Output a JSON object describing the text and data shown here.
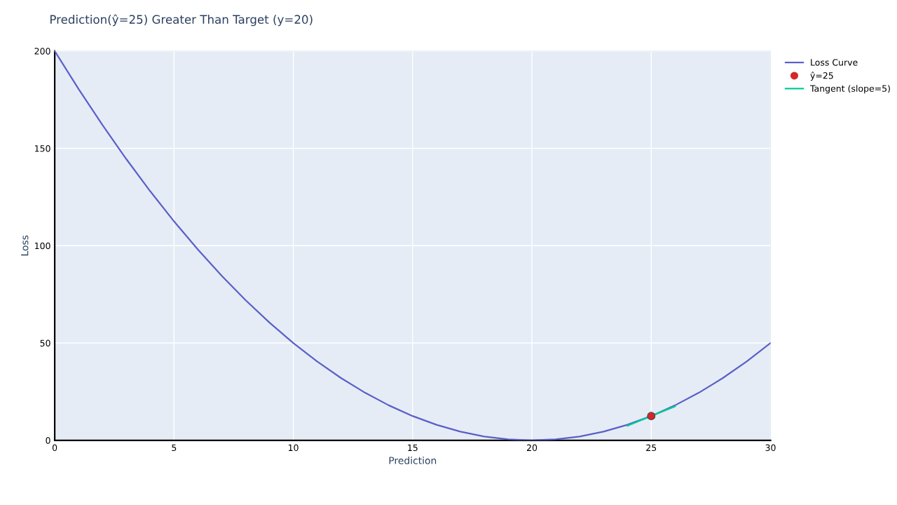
{
  "chart_data": {
    "type": "line",
    "title": "Prediction(ŷ=25) Greater Than Target (y=20)",
    "xlabel": "Prediction",
    "ylabel": "Loss",
    "xlim": [
      0,
      30
    ],
    "xticks": [
      0,
      5,
      10,
      15,
      20,
      25,
      30
    ],
    "ylim": [
      0,
      200
    ],
    "yticks": [
      0,
      50,
      100,
      150,
      200
    ],
    "grid": true,
    "legend": "top right",
    "series": [
      {
        "name": "Loss Curve",
        "color": "#5b5fc7",
        "x": [
          0,
          1,
          2,
          3,
          4,
          5,
          6,
          7,
          8,
          9,
          10,
          11,
          12,
          13,
          14,
          15,
          16,
          17,
          18,
          19,
          20,
          21,
          22,
          23,
          24,
          25,
          26,
          27,
          28,
          29,
          30
        ],
        "values": [
          200,
          180.5,
          162,
          144.5,
          128,
          112.5,
          98,
          84.5,
          72,
          60.5,
          50,
          40.5,
          32,
          24.5,
          18,
          12.5,
          8,
          4.5,
          2,
          0.5,
          0,
          0.5,
          2,
          4.5,
          8,
          12.5,
          18,
          24.5,
          32,
          40.5,
          50
        ]
      },
      {
        "name": "ŷ=25",
        "type": "scatter",
        "color": "#d62728",
        "marker": "circle",
        "x": [
          25
        ],
        "values": [
          12.5
        ]
      },
      {
        "name": "Tangent (slope=5)",
        "color": "#00cc96",
        "x": [
          24,
          26
        ],
        "values": [
          7.5,
          17.5
        ]
      }
    ]
  }
}
